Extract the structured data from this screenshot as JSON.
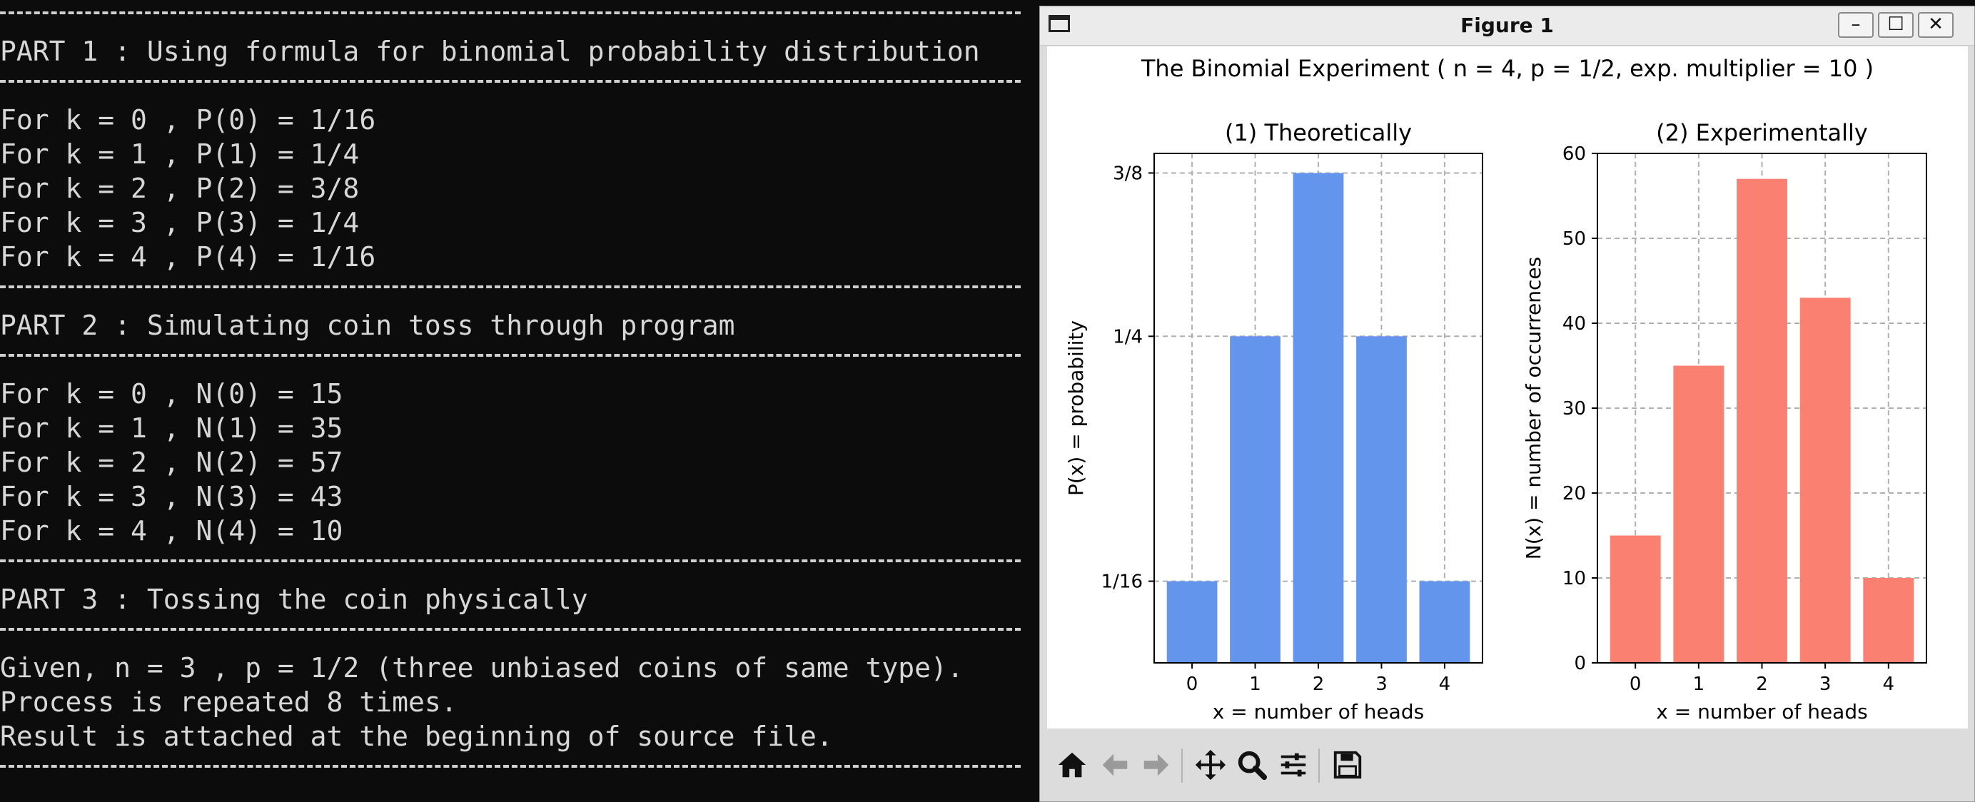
{
  "terminal": {
    "lines": [
      {
        "kind": "rule"
      },
      {
        "kind": "text",
        "text": "PART 1 : Using formula for binomial probability distribution"
      },
      {
        "kind": "rule"
      },
      {
        "kind": "text",
        "text": "For k = 0 , P(0) = 1/16"
      },
      {
        "kind": "text",
        "text": "For k = 1 , P(1) = 1/4"
      },
      {
        "kind": "text",
        "text": "For k = 2 , P(2) = 3/8"
      },
      {
        "kind": "text",
        "text": "For k = 3 , P(3) = 1/4"
      },
      {
        "kind": "text",
        "text": "For k = 4 , P(4) = 1/16"
      },
      {
        "kind": "rule"
      },
      {
        "kind": "text",
        "text": "PART 2 : Simulating coin toss through program"
      },
      {
        "kind": "rule"
      },
      {
        "kind": "text",
        "text": "For k = 0 , N(0) = 15"
      },
      {
        "kind": "text",
        "text": "For k = 1 , N(1) = 35"
      },
      {
        "kind": "text",
        "text": "For k = 2 , N(2) = 57"
      },
      {
        "kind": "text",
        "text": "For k = 3 , N(3) = 43"
      },
      {
        "kind": "text",
        "text": "For k = 4 , N(4) = 10"
      },
      {
        "kind": "rule"
      },
      {
        "kind": "text",
        "text": "PART 3 : Tossing the coin physically"
      },
      {
        "kind": "rule"
      },
      {
        "kind": "text",
        "text": "Given, n = 3 , p = 1/2 (three unbiased coins of same type)."
      },
      {
        "kind": "text",
        "text": "Process is repeated 8 times."
      },
      {
        "kind": "text",
        "text": "Result is attached at the beginning of source file."
      },
      {
        "kind": "rule"
      }
    ]
  },
  "window": {
    "title": "Figure 1",
    "minimize_glyph": "–",
    "maximize_glyph": "☐",
    "close_glyph": "✕"
  },
  "toolbar": {
    "buttons": [
      "home-icon",
      "back-icon",
      "forward-icon",
      "pan-icon",
      "zoom-icon",
      "configure-icon",
      "save-icon"
    ]
  },
  "colors": {
    "theoretical_bar": "#6495ed",
    "experimental_bar": "#fa8072",
    "grid": "#b0b0b0"
  },
  "chart_data": [
    {
      "type": "bar",
      "suptitle": "The Binomial Experiment ( n = 4, p = 1/2, exp. multiplier = 10 )",
      "title": "(1) Theoretically",
      "categories": [
        "0",
        "1",
        "2",
        "3",
        "4"
      ],
      "values": [
        0.0625,
        0.25,
        0.375,
        0.25,
        0.0625
      ],
      "xlabel": "x = number of heads",
      "ylabel": "P(x) = probability",
      "yticks": [
        0.0625,
        0.25,
        0.375
      ],
      "ytick_labels": [
        "1/16",
        "1/4",
        "3/8"
      ],
      "ylim": [
        0,
        0.39
      ],
      "grid": true
    },
    {
      "type": "bar",
      "title": "(2) Experimentally",
      "categories": [
        "0",
        "1",
        "2",
        "3",
        "4"
      ],
      "values": [
        15,
        35,
        57,
        43,
        10
      ],
      "xlabel": "x = number of heads",
      "ylabel": "N(x) = number of occurrences",
      "yticks": [
        0,
        10,
        20,
        30,
        40,
        50,
        60
      ],
      "ytick_labels": [
        "0",
        "10",
        "20",
        "30",
        "40",
        "50",
        "60"
      ],
      "ylim": [
        0,
        60
      ],
      "grid": true
    }
  ]
}
